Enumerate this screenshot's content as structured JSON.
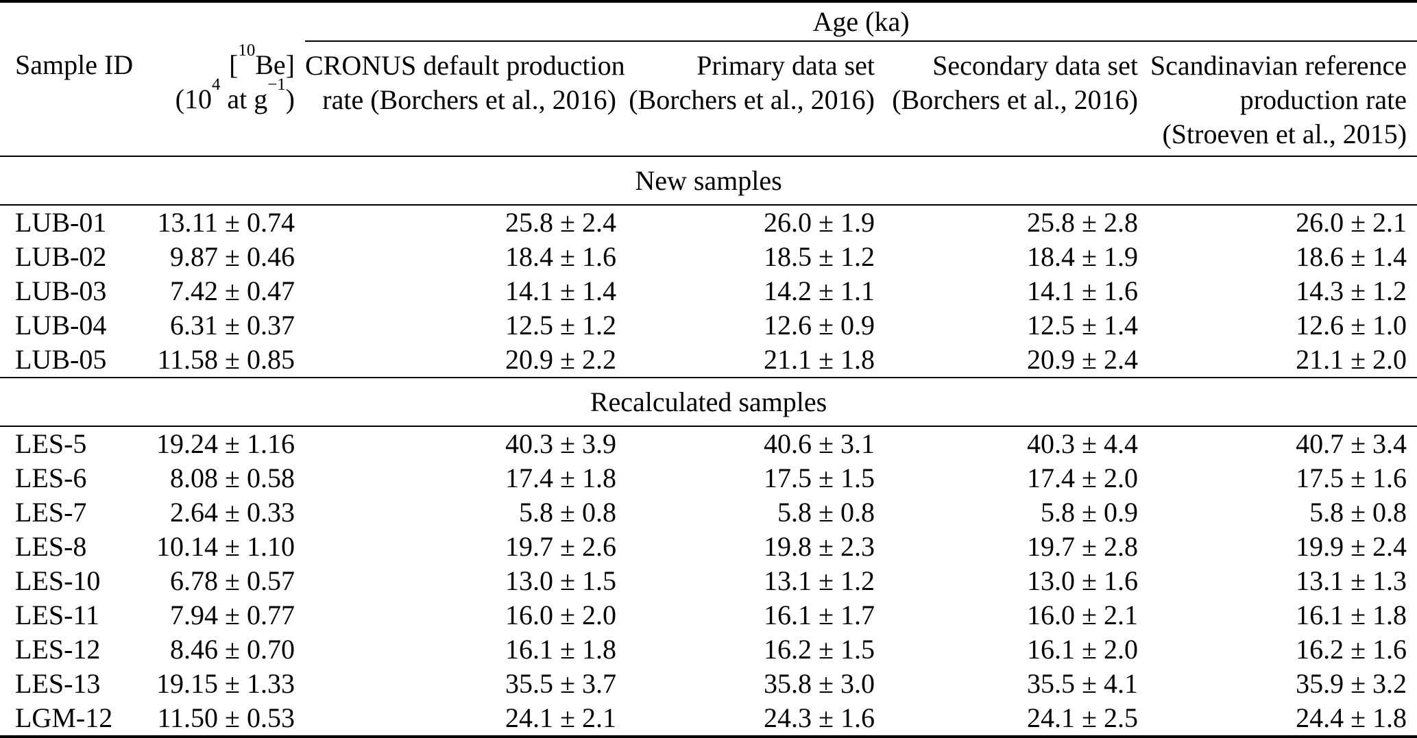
{
  "table": {
    "age_group_header": "Age (ka)",
    "columns": {
      "sample_id": "Sample ID",
      "be_header": {
        "l1_open": "[",
        "l1_sup": "10",
        "l1_rest": "Be]",
        "l2_open": "(10",
        "l2_sup": "4",
        "l2_mid": " at g",
        "l2_sup2": "−1",
        "l2_close": ")"
      },
      "cronus": [
        "CRONUS default production",
        "rate (Borchers et al., 2016)"
      ],
      "primary": [
        "Primary data set",
        "(Borchers et al., 2016)"
      ],
      "secondary": [
        "Secondary data set",
        "(Borchers et al., 2016)"
      ],
      "scandinavian": [
        "Scandinavian reference",
        "production rate",
        "(Stroeven et al., 2015)"
      ]
    },
    "sections": [
      {
        "label": "New samples",
        "rows": [
          {
            "id": "LUB-01",
            "be": "13.11 ± 0.74",
            "ages": [
              "25.8 ± 2.4",
              "26.0 ± 1.9",
              "25.8 ± 2.8",
              "26.0 ± 2.1"
            ]
          },
          {
            "id": "LUB-02",
            "be": "9.87 ± 0.46",
            "ages": [
              "18.4 ± 1.6",
              "18.5 ± 1.2",
              "18.4 ± 1.9",
              "18.6 ± 1.4"
            ]
          },
          {
            "id": "LUB-03",
            "be": "7.42 ± 0.47",
            "ages": [
              "14.1 ± 1.4",
              "14.2 ± 1.1",
              "14.1 ± 1.6",
              "14.3 ± 1.2"
            ]
          },
          {
            "id": "LUB-04",
            "be": "6.31 ± 0.37",
            "ages": [
              "12.5 ± 1.2",
              "12.6 ± 0.9",
              "12.5 ± 1.4",
              "12.6 ± 1.0"
            ]
          },
          {
            "id": "LUB-05",
            "be": "11.58 ± 0.85",
            "ages": [
              "20.9 ± 2.2",
              "21.1 ± 1.8",
              "20.9 ± 2.4",
              "21.1 ± 2.0"
            ]
          }
        ]
      },
      {
        "label": "Recalculated samples",
        "rows": [
          {
            "id": "LES-5",
            "be": "19.24 ± 1.16",
            "ages": [
              "40.3 ± 3.9",
              "40.6 ± 3.1",
              "40.3 ± 4.4",
              "40.7 ± 3.4"
            ]
          },
          {
            "id": "LES-6",
            "be": "8.08 ± 0.58",
            "ages": [
              "17.4 ± 1.8",
              "17.5 ± 1.5",
              "17.4 ± 2.0",
              "17.5 ± 1.6"
            ]
          },
          {
            "id": "LES-7",
            "be": "2.64 ± 0.33",
            "ages": [
              "5.8 ± 0.8",
              "5.8 ± 0.8",
              "5.8 ± 0.9",
              "5.8 ± 0.8"
            ]
          },
          {
            "id": "LES-8",
            "be": "10.14 ± 1.10",
            "ages": [
              "19.7 ± 2.6",
              "19.8 ± 2.3",
              "19.7 ± 2.8",
              "19.9 ± 2.4"
            ]
          },
          {
            "id": "LES-10",
            "be": "6.78 ± 0.57",
            "ages": [
              "13.0 ± 1.5",
              "13.1 ± 1.2",
              "13.0 ± 1.6",
              "13.1 ± 1.3"
            ]
          },
          {
            "id": "LES-11",
            "be": "7.94 ± 0.77",
            "ages": [
              "16.0 ± 2.0",
              "16.1 ± 1.7",
              "16.0 ± 2.1",
              "16.1 ± 1.8"
            ]
          },
          {
            "id": "LES-12",
            "be": "8.46 ± 0.70",
            "ages": [
              "16.1 ± 1.8",
              "16.2 ± 1.5",
              "16.1 ± 2.0",
              "16.2 ± 1.6"
            ]
          },
          {
            "id": "LES-13",
            "be": "19.15 ± 1.33",
            "ages": [
              "35.5 ± 3.7",
              "35.8 ± 3.0",
              "35.5 ± 4.1",
              "35.9 ± 3.2"
            ]
          },
          {
            "id": "LGM-12",
            "be": "11.50 ± 0.53",
            "ages": [
              "24.1 ± 2.1",
              "24.3 ± 1.6",
              "24.1 ± 2.5",
              "24.4 ± 1.8"
            ]
          }
        ]
      }
    ]
  }
}
